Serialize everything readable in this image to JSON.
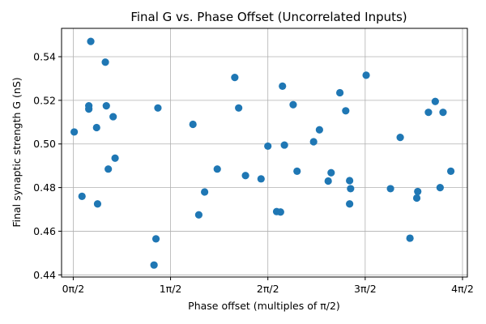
{
  "chart_data": {
    "type": "scatter",
    "title": "Final G vs. Phase Offset (Uncorrelated Inputs)",
    "xlabel": "Phase offset (multiples of π/2)",
    "ylabel": "Final synaptic strength G (nS)",
    "xlim": [
      -0.12,
      4.05
    ],
    "ylim": [
      0.439,
      0.553
    ],
    "grid": true,
    "marker_color": "#1f77b4",
    "x_ticks": [
      {
        "value": 0,
        "label": "0π/2"
      },
      {
        "value": 1,
        "label": "1π/2"
      },
      {
        "value": 2,
        "label": "2π/2"
      },
      {
        "value": 3,
        "label": "3π/2"
      },
      {
        "value": 4,
        "label": "4π/2"
      }
    ],
    "y_ticks": [
      {
        "value": 0.44,
        "label": "0.44"
      },
      {
        "value": 0.46,
        "label": "0.46"
      },
      {
        "value": 0.48,
        "label": "0.48"
      },
      {
        "value": 0.5,
        "label": "0.50"
      },
      {
        "value": 0.52,
        "label": "0.52"
      },
      {
        "value": 0.54,
        "label": "0.54"
      }
    ],
    "points": [
      {
        "x": 0.01,
        "y": 0.5055
      },
      {
        "x": 0.09,
        "y": 0.476
      },
      {
        "x": 0.16,
        "y": 0.5175
      },
      {
        "x": 0.16,
        "y": 0.516
      },
      {
        "x": 0.18,
        "y": 0.547
      },
      {
        "x": 0.24,
        "y": 0.5075
      },
      {
        "x": 0.25,
        "y": 0.4725
      },
      {
        "x": 0.33,
        "y": 0.5375
      },
      {
        "x": 0.34,
        "y": 0.5175
      },
      {
        "x": 0.36,
        "y": 0.4885
      },
      {
        "x": 0.41,
        "y": 0.5125
      },
      {
        "x": 0.43,
        "y": 0.4935
      },
      {
        "x": 0.83,
        "y": 0.4445
      },
      {
        "x": 0.85,
        "y": 0.4565
      },
      {
        "x": 0.87,
        "y": 0.5165
      },
      {
        "x": 1.23,
        "y": 0.509
      },
      {
        "x": 1.29,
        "y": 0.4675
      },
      {
        "x": 1.35,
        "y": 0.478
      },
      {
        "x": 1.48,
        "y": 0.4885
      },
      {
        "x": 1.66,
        "y": 0.5305
      },
      {
        "x": 1.7,
        "y": 0.5165
      },
      {
        "x": 1.77,
        "y": 0.4855
      },
      {
        "x": 1.93,
        "y": 0.484
      },
      {
        "x": 2.0,
        "y": 0.499
      },
      {
        "x": 2.09,
        "y": 0.469
      },
      {
        "x": 2.13,
        "y": 0.4688
      },
      {
        "x": 2.15,
        "y": 0.5265
      },
      {
        "x": 2.17,
        "y": 0.4995
      },
      {
        "x": 2.26,
        "y": 0.518
      },
      {
        "x": 2.3,
        "y": 0.4875
      },
      {
        "x": 2.47,
        "y": 0.501
      },
      {
        "x": 2.53,
        "y": 0.5065
      },
      {
        "x": 2.62,
        "y": 0.483
      },
      {
        "x": 2.65,
        "y": 0.4868
      },
      {
        "x": 2.74,
        "y": 0.5235
      },
      {
        "x": 2.8,
        "y": 0.5152
      },
      {
        "x": 2.84,
        "y": 0.4832
      },
      {
        "x": 2.84,
        "y": 0.4725
      },
      {
        "x": 2.85,
        "y": 0.4795
      },
      {
        "x": 3.01,
        "y": 0.5315
      },
      {
        "x": 3.26,
        "y": 0.4795
      },
      {
        "x": 3.36,
        "y": 0.503
      },
      {
        "x": 3.46,
        "y": 0.4568
      },
      {
        "x": 3.53,
        "y": 0.4752
      },
      {
        "x": 3.54,
        "y": 0.4782
      },
      {
        "x": 3.65,
        "y": 0.5145
      },
      {
        "x": 3.72,
        "y": 0.5195
      },
      {
        "x": 3.77,
        "y": 0.48
      },
      {
        "x": 3.8,
        "y": 0.5145
      },
      {
        "x": 3.88,
        "y": 0.4875
      }
    ]
  }
}
